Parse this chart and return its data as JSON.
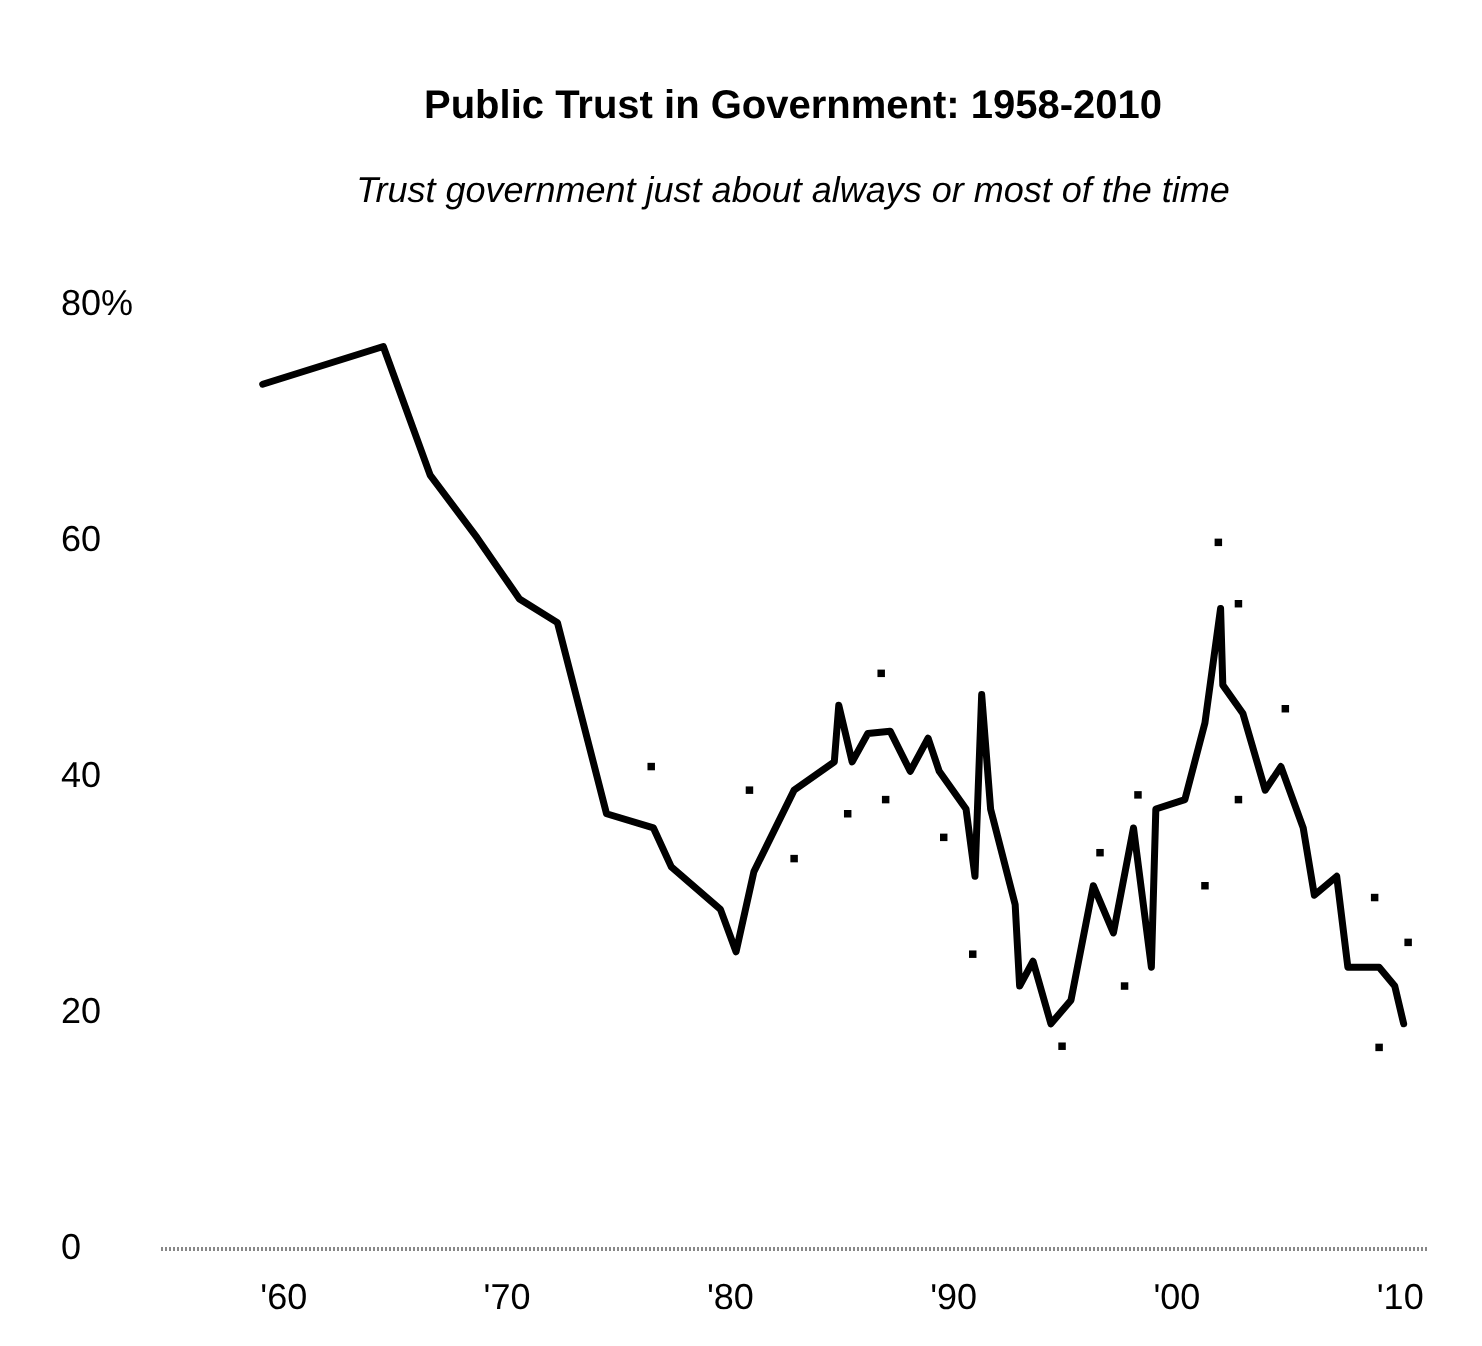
{
  "chart_data": {
    "type": "line",
    "title": "Public Trust in Government: 1958-2010",
    "subtitle": "Trust government just about always or most of the time",
    "xlim": [
      1954.5,
      2011.2
    ],
    "ylim": [
      0,
      80
    ],
    "xticks": [
      {
        "value": 1960,
        "label": "'60"
      },
      {
        "value": 1970,
        "label": "'70"
      },
      {
        "value": 1980,
        "label": "'80"
      },
      {
        "value": 1990,
        "label": "'90"
      },
      {
        "value": 2000,
        "label": "'00"
      },
      {
        "value": 2010,
        "label": "'10"
      }
    ],
    "yticks": [
      0,
      20,
      40,
      60,
      {
        "value": 80,
        "label": "80%"
      }
    ],
    "grid": false,
    "line_style": "solid",
    "series": [
      {
        "color": "#000000",
        "x": [
          1959.1,
          1964.5,
          1966.6,
          1968.7,
          1970.6,
          1972.3,
          1974.5,
          1976.6,
          1977.4,
          1979.6,
          1980.3,
          1981.1,
          1982.9,
          1984.7,
          1984.9,
          1985.5,
          1986.2,
          1987.2,
          1988.1,
          1988.9,
          1989.4,
          1990.6,
          1991,
          1991.3,
          1991.7,
          1992.8,
          1993,
          1993.6,
          1994.4,
          1995.3,
          1996.3,
          1997.2,
          1998.1,
          1998.9,
          1999.1,
          2000.4,
          2001.3,
          2002,
          2002.1,
          2003,
          2004,
          2004.7,
          2005.7,
          2006.2,
          2007.2,
          2007.7,
          2009.1,
          2009.8,
          2010.2
        ],
        "values": [
          73.2,
          76.4,
          65.5,
          60.2,
          55,
          53,
          36.8,
          35.6,
          32.3,
          28.7,
          25.1,
          31.9,
          38.8,
          41.2,
          46,
          41.2,
          43.6,
          43.8,
          40.4,
          43.2,
          40.4,
          37.2,
          31.5,
          46.9,
          37.2,
          29.1,
          22.2,
          24.3,
          19,
          21,
          30.7,
          26.7,
          35.6,
          23.8,
          37.2,
          38,
          44.5,
          54.2,
          47.7,
          45.3,
          38.8,
          40.8,
          35.6,
          29.9,
          31.5,
          23.8,
          23.8,
          22.2,
          19
        ]
      },
      {
        "type": "scatter",
        "color": "#000000",
        "marker": "square",
        "x": [
          1976.5,
          1980.9,
          1982.9,
          1986.8,
          1985.3,
          1987,
          1989.6,
          1990.9,
          1994.9,
          1996.6,
          1997.7,
          1998.3,
          2001.3,
          2001.9,
          2002.8,
          2002.8,
          2004.9,
          2008.9,
          2009.1,
          2010.4
        ],
        "values": [
          40.8,
          38.8,
          33,
          48.7,
          36.8,
          38,
          34.8,
          24.9,
          17.1,
          33.5,
          22.2,
          38.4,
          30.7,
          59.8,
          54.6,
          38,
          45.7,
          29.7,
          17,
          25.9
        ]
      }
    ]
  }
}
